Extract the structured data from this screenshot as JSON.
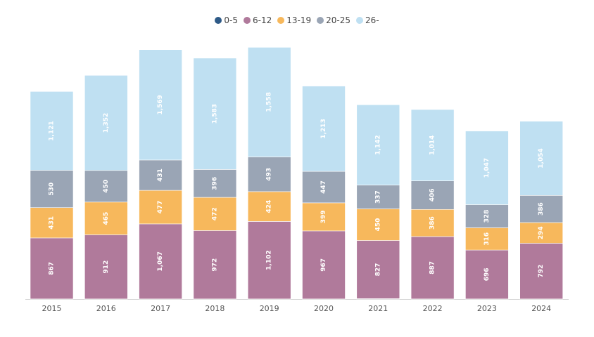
{
  "chart_data": {
    "type": "bar",
    "stacked": true,
    "categories": [
      "2015",
      "2016",
      "2017",
      "2018",
      "2019",
      "2020",
      "2021",
      "2022",
      "2023",
      "2024"
    ],
    "series": [
      {
        "name": "0-5",
        "color": "#2e5a87",
        "values": [
          2,
          2,
          2,
          2,
          2,
          2,
          6,
          2,
          2,
          2
        ],
        "labels": [
          "",
          "",
          "",
          "",
          "",
          "",
          "",
          "",
          "",
          ""
        ]
      },
      {
        "name": "6-12",
        "color": "#b07a9b",
        "values": [
          867,
          912,
          1067,
          972,
          1102,
          967,
          827,
          887,
          696,
          792
        ],
        "labels": [
          "867",
          "912",
          "1,067",
          "972",
          "1,102",
          "967",
          "827",
          "887",
          "696",
          "792"
        ]
      },
      {
        "name": "13-19",
        "color": "#f7b85c",
        "values": [
          431,
          465,
          477,
          472,
          424,
          399,
          450,
          386,
          316,
          294
        ],
        "labels": [
          "431",
          "465",
          "477",
          "472",
          "424",
          "399",
          "450",
          "386",
          "316",
          "294"
        ]
      },
      {
        "name": "20-25",
        "color": "#9aa5b5",
        "values": [
          530,
          450,
          431,
          396,
          493,
          447,
          337,
          406,
          328,
          386
        ],
        "labels": [
          "530",
          "450",
          "431",
          "396",
          "493",
          "447",
          "337",
          "406",
          "328",
          "386"
        ]
      },
      {
        "name": "26-",
        "color": "#bfe0f2",
        "values": [
          1121,
          1352,
          1569,
          1583,
          1558,
          1213,
          1142,
          1014,
          1047,
          1054
        ],
        "labels": [
          "1,121",
          "1,352",
          "1,569",
          "1,583",
          "1,558",
          "1,213",
          "1,142",
          "1,014",
          "1,047",
          "1,054"
        ]
      }
    ],
    "legend_position": "top-center",
    "grid": false
  }
}
